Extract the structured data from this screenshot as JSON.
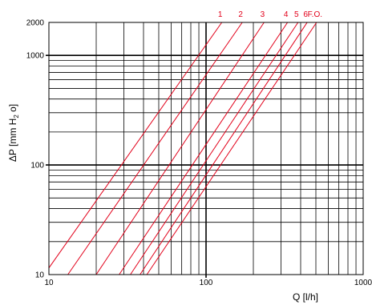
{
  "chart_data": {
    "type": "line",
    "title": "",
    "xlabel": "Q [l/h]",
    "ylabel_parts": {
      "main": "ΔP [mm H",
      "sub": "2",
      "end": " o]"
    },
    "x_scale": "log",
    "y_scale": "log",
    "xlim": [
      10,
      1000
    ],
    "ylim": [
      10,
      2000
    ],
    "grid": true,
    "x_ticks": [
      {
        "value": 10,
        "label": "10"
      },
      {
        "value": 100,
        "label": "100"
      },
      {
        "value": 1000,
        "label": "1000"
      }
    ],
    "y_ticks": [
      {
        "value": 10,
        "label": "10"
      },
      {
        "value": 100,
        "label": "100"
      },
      {
        "value": 1000,
        "label": "1000"
      },
      {
        "value": 2000,
        "label": "2000"
      }
    ],
    "colors": {
      "series": "#e2001a",
      "grid": "#000000"
    },
    "series": [
      {
        "name": "1",
        "points": [
          [
            10,
            11.5
          ],
          [
            126,
            2000
          ]
        ]
      },
      {
        "name": "2",
        "points": [
          [
            13.2,
            10
          ],
          [
            170,
            2000
          ]
        ]
      },
      {
        "name": "3",
        "points": [
          [
            20,
            10
          ],
          [
            234,
            2000
          ]
        ]
      },
      {
        "name": "4",
        "points": [
          [
            28,
            10
          ],
          [
            330,
            2000
          ]
        ]
      },
      {
        "name": "5",
        "points": [
          [
            33,
            10
          ],
          [
            385,
            2000
          ]
        ]
      },
      {
        "name": "6",
        "points": [
          [
            38,
            10
          ],
          [
            440,
            2000
          ]
        ]
      },
      {
        "name": "F.O.",
        "points": [
          [
            42,
            10
          ],
          [
            505,
            2000
          ]
        ]
      }
    ]
  }
}
